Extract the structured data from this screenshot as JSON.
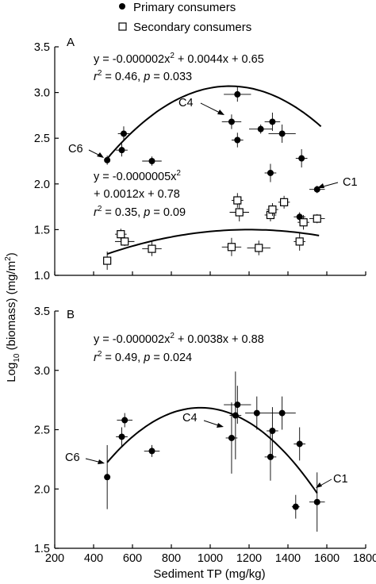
{
  "figure": {
    "ylabel_main": "Log",
    "ylabel_sub": "10",
    "ylabel_rest": " (biomass) (mg/m",
    "ylabel_sup": "2",
    "ylabel_end": ")",
    "xlabel": "Sediment TP (mg/kg)",
    "legend": {
      "primary": "Primary consumers",
      "secondary": "Secondary consumers"
    }
  },
  "chart_data": [
    {
      "type": "scatter",
      "panel": "A",
      "xlim": [
        200,
        1800
      ],
      "ylim": [
        1.0,
        3.5
      ],
      "yticks": [
        "1.0",
        "1.5",
        "2.0",
        "2.5",
        "3.0",
        "3.5"
      ],
      "yticks_values": [
        1.0,
        1.5,
        2.0,
        2.5,
        3.0,
        3.5
      ],
      "series": [
        {
          "name": "Primary consumers",
          "marker": "filled-circle",
          "points": [
            {
              "x": 470,
              "y": 2.26,
              "xerr": 0,
              "yerr": 0.05
            },
            {
              "x": 545,
              "y": 2.37,
              "xerr": 30,
              "yerr": 0.07
            },
            {
              "x": 555,
              "y": 2.55,
              "xerr": 30,
              "yerr": 0.08
            },
            {
              "x": 700,
              "y": 2.25,
              "xerr": 50,
              "yerr": 0.05
            },
            {
              "x": 1110,
              "y": 2.68,
              "xerr": 50,
              "yerr": 0.08
            },
            {
              "x": 1140,
              "y": 2.98,
              "xerr": 70,
              "yerr": 0.08
            },
            {
              "x": 1140,
              "y": 2.48,
              "xerr": 30,
              "yerr": 0.08
            },
            {
              "x": 1260,
              "y": 2.6,
              "xerr": 60,
              "yerr": 0.05
            },
            {
              "x": 1310,
              "y": 2.12,
              "xerr": 30,
              "yerr": 0.1
            },
            {
              "x": 1320,
              "y": 2.68,
              "xerr": 40,
              "yerr": 0.1
            },
            {
              "x": 1370,
              "y": 2.55,
              "xerr": 70,
              "yerr": 0.1
            },
            {
              "x": 1470,
              "y": 2.28,
              "xerr": 30,
              "yerr": 0.1
            },
            {
              "x": 1550,
              "y": 1.94,
              "xerr": 40,
              "yerr": 0.04
            },
            {
              "x": 1460,
              "y": 1.64,
              "xerr": 30,
              "yerr": 0.05
            }
          ]
        },
        {
          "name": "Secondary consumers",
          "marker": "open-square",
          "points": [
            {
              "x": 470,
              "y": 1.16,
              "xerr": 20,
              "yerr": 0.1
            },
            {
              "x": 540,
              "y": 1.45,
              "xerr": 30,
              "yerr": 0.06
            },
            {
              "x": 560,
              "y": 1.37,
              "xerr": 50,
              "yerr": 0.05
            },
            {
              "x": 700,
              "y": 1.29,
              "xerr": 50,
              "yerr": 0.08
            },
            {
              "x": 1110,
              "y": 1.31,
              "xerr": 50,
              "yerr": 0.1
            },
            {
              "x": 1140,
              "y": 1.82,
              "xerr": 30,
              "yerr": 0.08
            },
            {
              "x": 1150,
              "y": 1.69,
              "xerr": 50,
              "yerr": 0.1
            },
            {
              "x": 1250,
              "y": 1.3,
              "xerr": 60,
              "yerr": 0.08
            },
            {
              "x": 1310,
              "y": 1.66,
              "xerr": 30,
              "yerr": 0.07
            },
            {
              "x": 1320,
              "y": 1.72,
              "xerr": 30,
              "yerr": 0.07
            },
            {
              "x": 1380,
              "y": 1.8,
              "xerr": 30,
              "yerr": 0.07
            },
            {
              "x": 1460,
              "y": 1.37,
              "xerr": 30,
              "yerr": 0.1
            },
            {
              "x": 1480,
              "y": 1.58,
              "xerr": 30,
              "yerr": 0.08
            },
            {
              "x": 1550,
              "y": 1.62,
              "xerr": 40,
              "yerr": 0.05
            }
          ]
        }
      ],
      "fits": [
        {
          "a": -2e-06,
          "b": 0.0044,
          "c": 0.65,
          "x_from": 470,
          "x_to": 1570
        },
        {
          "a": -5e-07,
          "b": 0.0012,
          "c": 0.78,
          "x_from": 470,
          "x_to": 1560
        }
      ],
      "equations": {
        "primary_prefix": "y = -0.000002x",
        "primary_sup": "2",
        "primary_suffix": " + 0.0044x + 0.65",
        "primary_r2_r": "r",
        "primary_r2_sup": "2",
        "primary_r2_mid": " = 0.46, ",
        "primary_r2_p": "p",
        "primary_r2_end": " = 0.033",
        "secondary_line1_prefix": "y = -0.0000005x",
        "secondary_line1_sup": "2",
        "secondary_line2": "+ 0.0012x + 0.78",
        "secondary_r2_r": "r",
        "secondary_r2_sup": "2",
        "secondary_r2_mid": " = 0.35, ",
        "secondary_r2_p": "p",
        "secondary_r2_end": " = 0.09"
      },
      "annotations": {
        "panel_letter": "A",
        "c6": "C6",
        "c4": "C4",
        "c1": "C1"
      }
    },
    {
      "type": "scatter",
      "panel": "B",
      "xlim": [
        200,
        1800
      ],
      "ylim": [
        1.5,
        3.5
      ],
      "xticks": [
        "200",
        "400",
        "600",
        "800",
        "1000",
        "1200",
        "1400",
        "1600",
        "1800"
      ],
      "xticks_values": [
        200,
        400,
        600,
        800,
        1000,
        1200,
        1400,
        1600,
        1800
      ],
      "yticks": [
        "1.5",
        "2.0",
        "2.5",
        "3.0",
        "3.5"
      ],
      "yticks_values": [
        1.5,
        2.0,
        2.5,
        3.0,
        3.5
      ],
      "series": [
        {
          "name": "Primary consumers",
          "marker": "filled-circle",
          "points": [
            {
              "x": 470,
              "y": 2.1,
              "xerr": 0,
              "yerr": 0.27
            },
            {
              "x": 545,
              "y": 2.44,
              "xerr": 30,
              "yerr": 0.08
            },
            {
              "x": 560,
              "y": 2.58,
              "xerr": 40,
              "yerr": 0.06
            },
            {
              "x": 700,
              "y": 2.32,
              "xerr": 40,
              "yerr": 0.05
            },
            {
              "x": 1110,
              "y": 2.43,
              "xerr": 30,
              "yerr": 0.3
            },
            {
              "x": 1130,
              "y": 2.62,
              "xerr": 30,
              "yerr": 0.37
            },
            {
              "x": 1140,
              "y": 2.71,
              "xerr": 70,
              "yerr": 0.16
            },
            {
              "x": 1240,
              "y": 2.64,
              "xerr": 60,
              "yerr": 0.14
            },
            {
              "x": 1310,
              "y": 2.27,
              "xerr": 30,
              "yerr": 0.2
            },
            {
              "x": 1320,
              "y": 2.49,
              "xerr": 30,
              "yerr": 0.2
            },
            {
              "x": 1370,
              "y": 2.64,
              "xerr": 70,
              "yerr": 0.14
            },
            {
              "x": 1460,
              "y": 2.38,
              "xerr": 30,
              "yerr": 0.14
            },
            {
              "x": 1440,
              "y": 1.85,
              "xerr": 20,
              "yerr": 0.1
            },
            {
              "x": 1550,
              "y": 1.89,
              "xerr": 40,
              "yerr": 0.25
            }
          ]
        }
      ],
      "fits": [
        {
          "a": -2e-06,
          "b": 0.0038,
          "c": 0.88,
          "x_from": 470,
          "x_to": 1550
        }
      ],
      "equations": {
        "primary_prefix": "y = -0.000002x",
        "primary_sup": "2",
        "primary_suffix": " + 0.0038x + 0.88",
        "primary_r2_r": "r",
        "primary_r2_sup": "2",
        "primary_r2_mid": " = 0.49, ",
        "primary_r2_p": "p",
        "primary_r2_end": " = 0.024"
      },
      "annotations": {
        "panel_letter": "B",
        "c6": "C6",
        "c4": "C4",
        "c1": "C1"
      }
    }
  ]
}
